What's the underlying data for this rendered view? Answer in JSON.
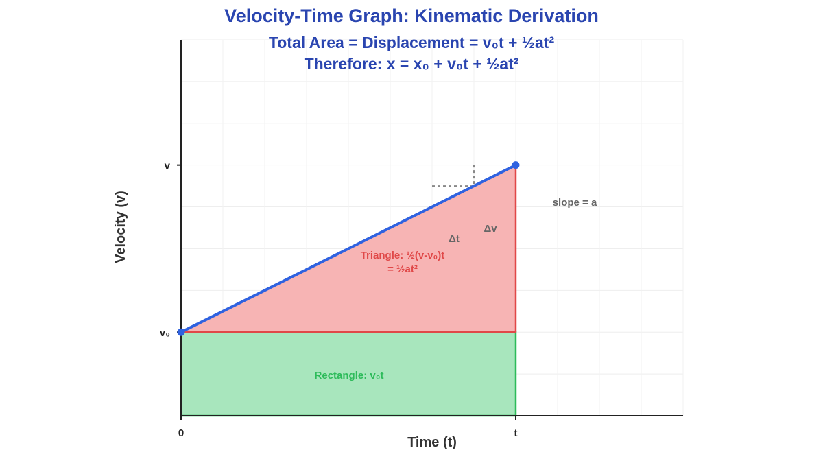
{
  "chart_data": {
    "type": "line",
    "title": "Velocity-Time Graph: Kinematic Derivation",
    "subtitle_lines": [
      "Total Area = Displacement = v₀t + ½at²",
      "Therefore: x = x₀ + v₀t + ½at²"
    ],
    "xlabel": "Time (t)",
    "ylabel": "Velocity (v)",
    "xlim": [
      0,
      1.5
    ],
    "ylim": [
      0,
      4.5
    ],
    "grid": true,
    "x_ticks": [
      {
        "value": 0,
        "label": "0"
      },
      {
        "value": 1,
        "label": "t"
      }
    ],
    "y_ticks": [
      {
        "value": 1,
        "label": "v₀"
      },
      {
        "value": 3,
        "label": "v"
      }
    ],
    "series": [
      {
        "x": [
          0,
          1
        ],
        "y": [
          1,
          3
        ],
        "color": "#2f62e0"
      }
    ],
    "regions": [
      {
        "label": "Rectangle: v₀t",
        "fill": "#a8e6bd",
        "stroke": "#2dbb5a"
      },
      {
        "label_lines": [
          "Triangle: ½(v-v₀)t",
          "= ½at²"
        ],
        "fill": "#f7b4b4",
        "stroke": "#e04848"
      }
    ],
    "annotations": {
      "slope": "slope = a",
      "delta_t": "Δt",
      "delta_v": "Δv",
      "color": "#666666"
    }
  }
}
